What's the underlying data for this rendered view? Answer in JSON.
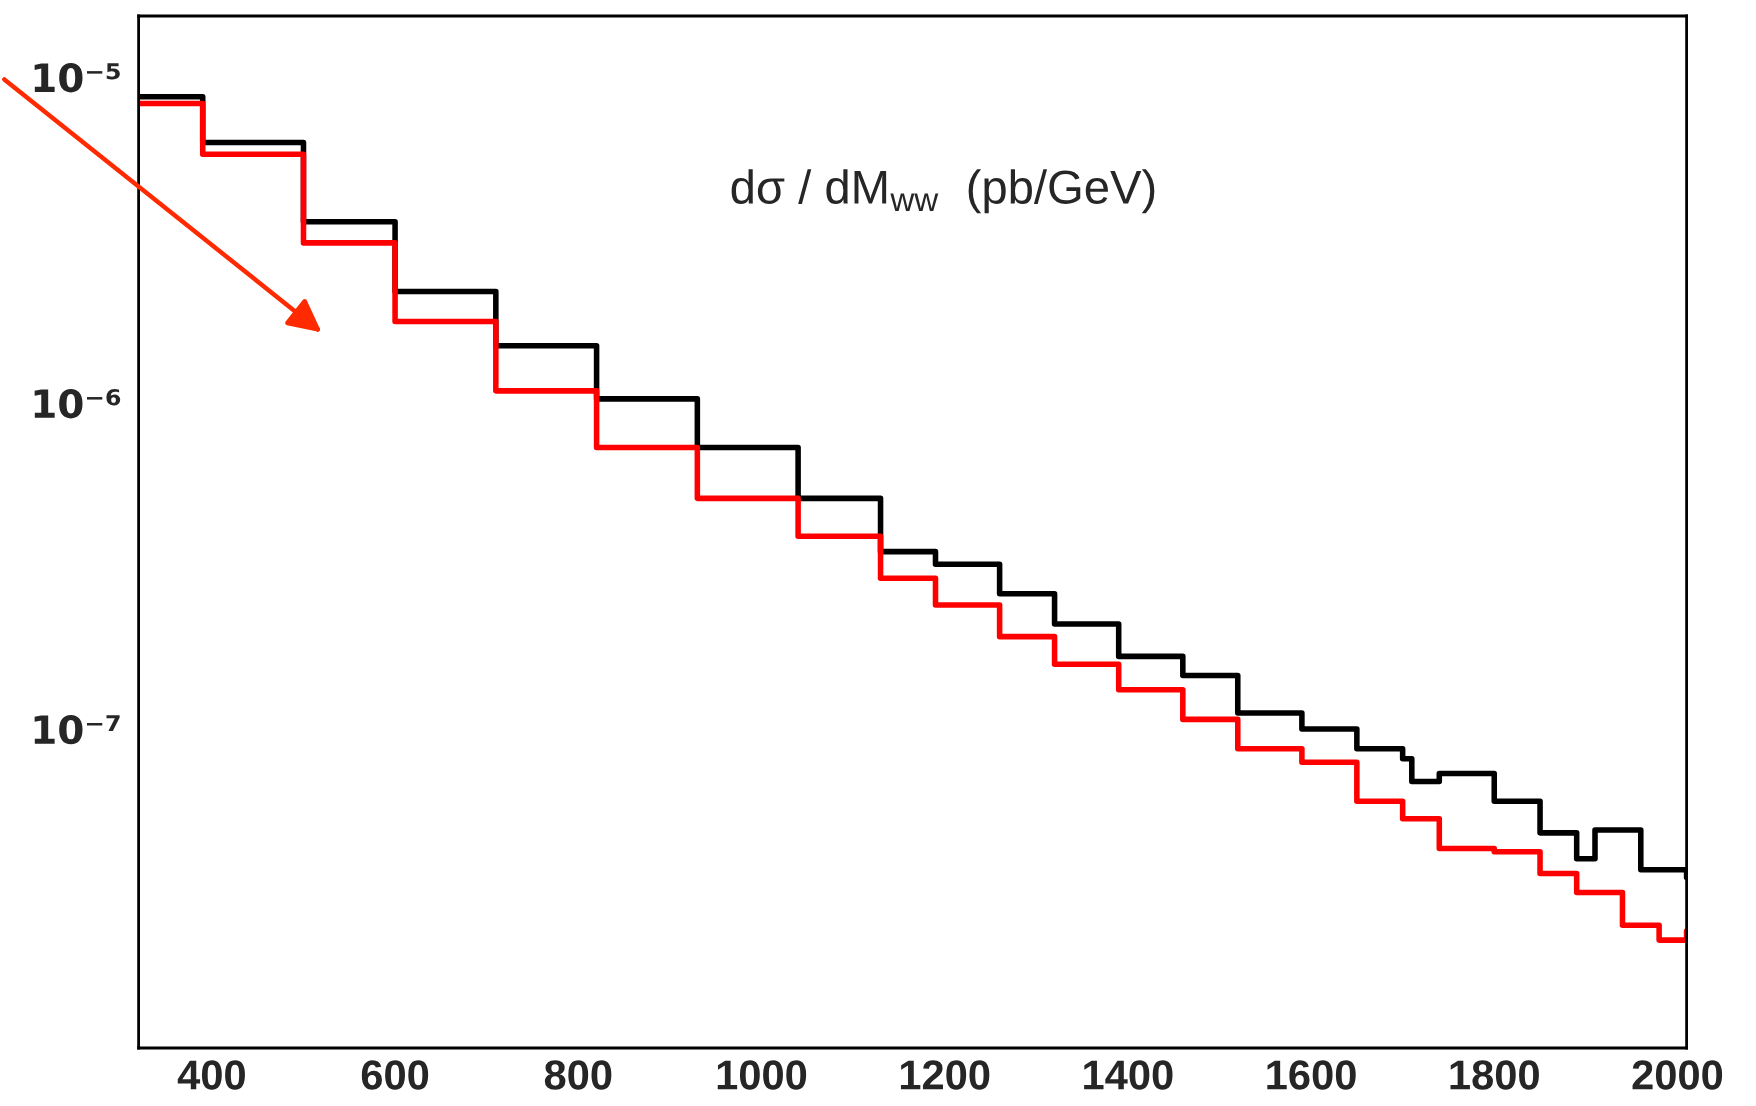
{
  "chart_data": {
    "type": "step",
    "title": "dσ / dM$_{ww}$  (pb/GeV)",
    "log": "y",
    "xlim": [
      320,
      2010
    ],
    "xticks": [
      400,
      600,
      800,
      1000,
      1200,
      1400,
      1600,
      1800,
      2000
    ],
    "ylim": [
      1.05e-08,
      1.54e-05
    ],
    "yticks": [
      {
        "value": 1e-07,
        "label": "10⁻⁷"
      },
      {
        "value": 1e-06,
        "label": "10⁻⁶"
      },
      {
        "value": 1e-05,
        "label": "10⁻⁵"
      }
    ],
    "grid": false,
    "legend": false,
    "line_style": "solid",
    "marker": "none",
    "series": [
      {
        "color": "#000000",
        "x": [
          320,
          390,
          500,
          600,
          710,
          820,
          930,
          1040,
          1130,
          1190,
          1260,
          1320,
          1390,
          1460,
          1520,
          1590,
          1650,
          1700,
          1710,
          1740,
          1800,
          1850,
          1890,
          1910,
          1960,
          2010
        ],
        "values": [
          8.7e-06,
          6.3e-06,
          3.6e-06,
          2.2e-06,
          1.5e-06,
          1.03e-06,
          7.3e-07,
          5.1e-07,
          3.5e-07,
          3.2e-07,
          2.6e-07,
          2.1e-07,
          1.67e-07,
          1.46e-07,
          1.12e-07,
          1e-07,
          8.7e-08,
          8.1e-08,
          6.9e-08,
          7.3e-08,
          6e-08,
          4.8e-08,
          4e-08,
          4.9e-08,
          3.7e-08,
          3.5e-08
        ]
      },
      {
        "color": "#ff0000",
        "x": [
          320,
          390,
          500,
          600,
          710,
          820,
          930,
          1040,
          1130,
          1190,
          1260,
          1320,
          1390,
          1460,
          1520,
          1590,
          1650,
          1700,
          1740,
          1800,
          1850,
          1890,
          1940,
          1980,
          2010
        ],
        "values": [
          8.3e-06,
          5.8e-06,
          3.1e-06,
          1.78e-06,
          1.09e-06,
          7.3e-07,
          5.1e-07,
          3.9e-07,
          2.9e-07,
          2.4e-07,
          1.92e-07,
          1.58e-07,
          1.32e-07,
          1.07e-07,
          8.7e-08,
          7.9e-08,
          6e-08,
          5.3e-08,
          4.3e-08,
          4.2e-08,
          3.6e-08,
          3.15e-08,
          2.5e-08,
          2.25e-08,
          2.4e-08
        ]
      }
    ]
  }
}
